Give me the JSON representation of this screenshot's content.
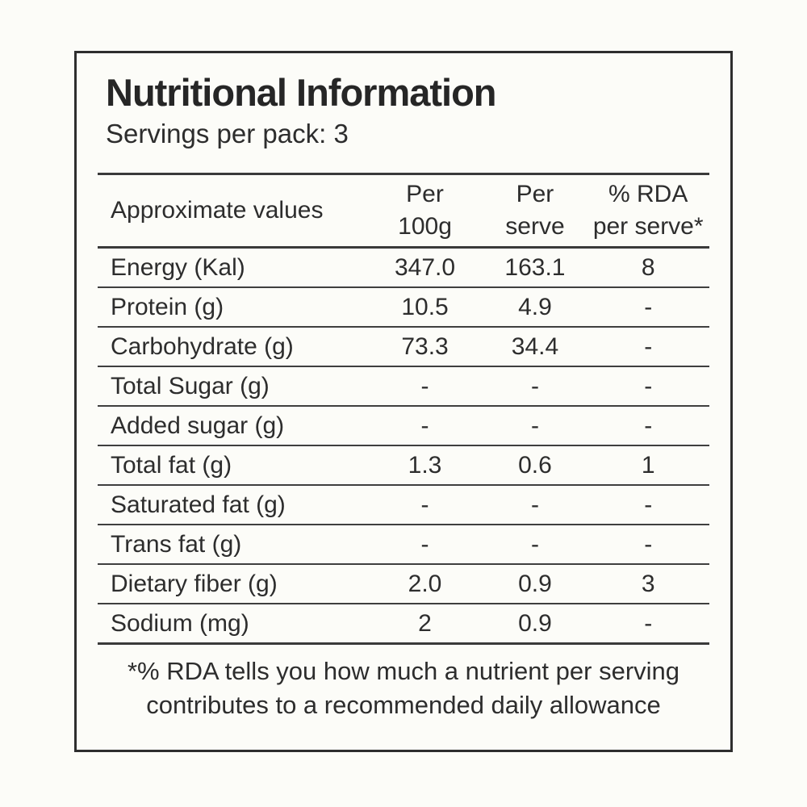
{
  "label": {
    "title": "Nutritional Information",
    "subtitle": "Servings per pack: 3",
    "table": {
      "header": {
        "col1": "Approximate values",
        "col2_line1": "Per",
        "col2_line2": "100g",
        "col3_line1": "Per",
        "col3_line2": "serve",
        "col4_line1": "% RDA",
        "col4_line2": "per serve*"
      },
      "rows": [
        {
          "name": "Energy (Kal)",
          "per_100g": "347.0",
          "per_serve": "163.1",
          "rda": "8"
        },
        {
          "name": "Protein (g)",
          "per_100g": "10.5",
          "per_serve": "4.9",
          "rda": "-"
        },
        {
          "name": "Carbohydrate (g)",
          "per_100g": "73.3",
          "per_serve": "34.4",
          "rda": "-"
        },
        {
          "name": "Total Sugar (g)",
          "per_100g": "-",
          "per_serve": "-",
          "rda": "-"
        },
        {
          "name": "Added sugar (g)",
          "per_100g": "-",
          "per_serve": "-",
          "rda": "-"
        },
        {
          "name": "Total fat (g)",
          "per_100g": "1.3",
          "per_serve": "0.6",
          "rda": "1"
        },
        {
          "name": "Saturated fat (g)",
          "per_100g": "-",
          "per_serve": "-",
          "rda": "-"
        },
        {
          "name": "Trans fat (g)",
          "per_100g": "-",
          "per_serve": "-",
          "rda": "-"
        },
        {
          "name": "Dietary fiber (g)",
          "per_100g": "2.0",
          "per_serve": "0.9",
          "rda": "3"
        },
        {
          "name": "Sodium (mg)",
          "per_100g": "2",
          "per_serve": "0.9",
          "rda": "-"
        }
      ]
    },
    "footnote": "*% RDA tells you how much a nutrient per serving contributes to a recommended daily allowance"
  },
  "colors": {
    "background": "#fcfcf8",
    "border": "#2e2e2e",
    "rule": "#3a3a3a",
    "text": "#2d2d2d"
  }
}
